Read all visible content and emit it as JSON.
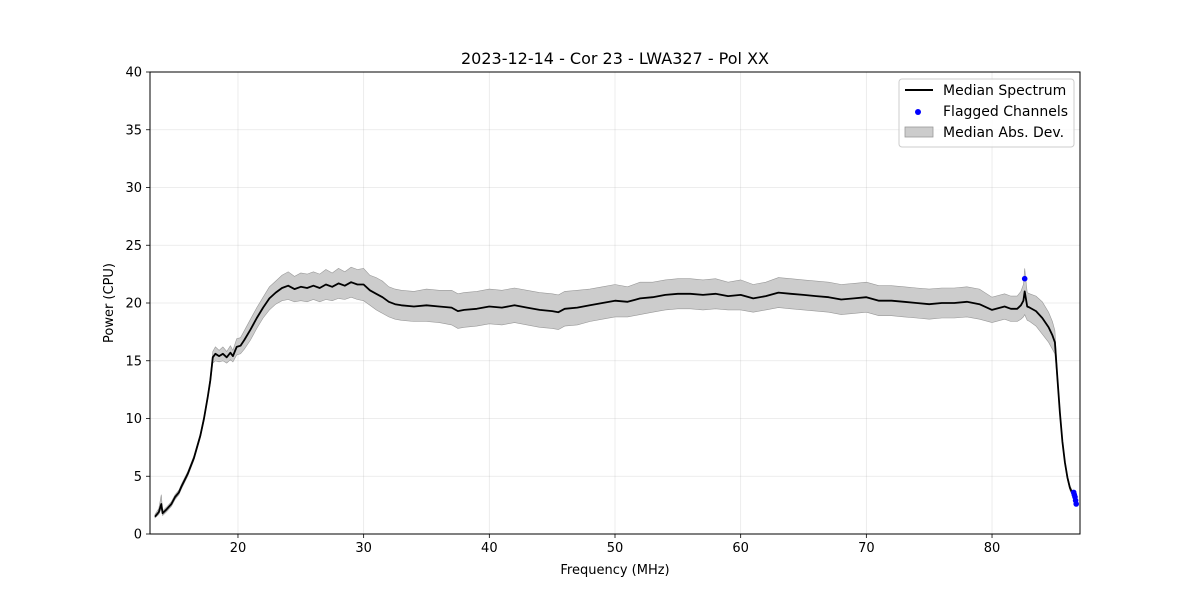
{
  "chart_data": {
    "type": "line",
    "title": "2023-12-14 - Cor 23 - LWA327 - Pol XX",
    "xlabel": "Frequency (MHz)",
    "ylabel": "Power (CPU)",
    "xlim": [
      13,
      87
    ],
    "ylim": [
      0,
      40
    ],
    "xticks": [
      20,
      30,
      40,
      50,
      60,
      70,
      80
    ],
    "yticks": [
      0,
      5,
      10,
      15,
      20,
      25,
      30,
      35,
      40
    ],
    "grid": true,
    "legend_position": "top-right",
    "colors": {
      "median": "#000000",
      "flagged": "#0000ff",
      "mad": "#cccccc",
      "mad_edge": "#999999"
    },
    "series": [
      {
        "name": "Median Spectrum",
        "kind": "line",
        "x": [
          13.4,
          13.7,
          13.9,
          14.0,
          14.3,
          14.7,
          15.0,
          15.3,
          15.5,
          16.0,
          16.5,
          17.0,
          17.3,
          17.6,
          17.8,
          18.0,
          18.2,
          18.5,
          18.8,
          19.1,
          19.4,
          19.6,
          19.9,
          20.2,
          20.5,
          21.0,
          21.5,
          22.0,
          22.5,
          23.0,
          23.5,
          24.0,
          24.5,
          25.0,
          25.5,
          26.0,
          26.5,
          27.0,
          27.5,
          28.0,
          28.5,
          29.0,
          29.5,
          30.0,
          30.5,
          31.0,
          31.5,
          32.0,
          32.5,
          33.0,
          34.0,
          35.0,
          36.0,
          37.0,
          37.5,
          38.0,
          39.0,
          40.0,
          41.0,
          42.0,
          43.0,
          44.0,
          45.0,
          45.5,
          46.0,
          47.0,
          48.0,
          49.0,
          50.0,
          51.0,
          52.0,
          53.0,
          54.0,
          55.0,
          56.0,
          57.0,
          58.0,
          59.0,
          60.0,
          61.0,
          62.0,
          63.0,
          64.0,
          65.0,
          66.0,
          67.0,
          68.0,
          69.0,
          70.0,
          71.0,
          72.0,
          73.0,
          74.0,
          75.0,
          76.0,
          77.0,
          78.0,
          79.0,
          80.0,
          81.0,
          81.5,
          82.0,
          82.3,
          82.5,
          82.6,
          82.8,
          83.0,
          83.5,
          84.0,
          84.5,
          84.8,
          85.0,
          85.2,
          85.4,
          85.6,
          85.8,
          86.0,
          86.2,
          86.4,
          86.5,
          86.6,
          86.7
        ],
        "y": [
          1.5,
          1.9,
          2.6,
          1.8,
          2.1,
          2.6,
          3.2,
          3.6,
          4.1,
          5.2,
          6.6,
          8.5,
          10.0,
          11.9,
          13.3,
          15.3,
          15.6,
          15.4,
          15.6,
          15.3,
          15.7,
          15.4,
          16.2,
          16.3,
          16.8,
          17.7,
          18.7,
          19.6,
          20.4,
          20.9,
          21.3,
          21.5,
          21.2,
          21.4,
          21.3,
          21.5,
          21.3,
          21.6,
          21.4,
          21.7,
          21.5,
          21.8,
          21.6,
          21.6,
          21.1,
          20.8,
          20.5,
          20.1,
          19.9,
          19.8,
          19.7,
          19.8,
          19.7,
          19.6,
          19.3,
          19.4,
          19.5,
          19.7,
          19.6,
          19.8,
          19.6,
          19.4,
          19.3,
          19.2,
          19.5,
          19.6,
          19.8,
          20.0,
          20.2,
          20.1,
          20.4,
          20.5,
          20.7,
          20.8,
          20.8,
          20.7,
          20.8,
          20.6,
          20.7,
          20.4,
          20.6,
          20.9,
          20.8,
          20.7,
          20.6,
          20.5,
          20.3,
          20.4,
          20.5,
          20.2,
          20.2,
          20.1,
          20.0,
          19.9,
          20.0,
          20.0,
          20.1,
          19.9,
          19.4,
          19.7,
          19.5,
          19.5,
          19.8,
          20.2,
          21.0,
          19.7,
          19.6,
          19.3,
          18.7,
          17.9,
          17.2,
          16.6,
          13.5,
          10.5,
          8.0,
          6.2,
          4.9,
          4.0,
          3.5,
          3.3,
          3.0,
          2.7
        ],
        "mad_lower": [
          1.4,
          1.7,
          2.2,
          1.6,
          1.9,
          2.4,
          3.0,
          3.4,
          3.9,
          5.0,
          6.4,
          8.3,
          9.8,
          11.7,
          13.0,
          14.8,
          15.0,
          14.9,
          15.0,
          14.8,
          15.1,
          14.9,
          15.5,
          15.6,
          16.0,
          16.8,
          17.8,
          18.7,
          19.4,
          19.9,
          20.2,
          20.3,
          20.1,
          20.2,
          20.1,
          20.3,
          20.1,
          20.3,
          20.2,
          20.4,
          20.3,
          20.5,
          20.3,
          20.2,
          19.8,
          19.4,
          19.1,
          18.8,
          18.6,
          18.5,
          18.4,
          18.4,
          18.3,
          18.1,
          17.8,
          17.9,
          18.0,
          18.2,
          18.1,
          18.3,
          18.1,
          17.9,
          17.8,
          17.7,
          18.0,
          18.1,
          18.4,
          18.6,
          18.8,
          18.8,
          19.0,
          19.2,
          19.4,
          19.5,
          19.5,
          19.4,
          19.5,
          19.4,
          19.4,
          19.2,
          19.4,
          19.6,
          19.5,
          19.4,
          19.3,
          19.2,
          19.0,
          19.1,
          19.2,
          18.9,
          18.9,
          18.8,
          18.7,
          18.6,
          18.7,
          18.7,
          18.8,
          18.6,
          18.3,
          18.6,
          18.4,
          18.4,
          18.6,
          18.8,
          19.0,
          18.5,
          18.4,
          18.0,
          17.3,
          16.6,
          16.0,
          15.6,
          13.1,
          10.2,
          7.8,
          6.0,
          4.7,
          3.8,
          3.3,
          3.1,
          2.8,
          2.5
        ],
        "mad_upper": [
          1.7,
          2.2,
          3.4,
          2.0,
          2.3,
          2.8,
          3.4,
          3.8,
          4.3,
          5.4,
          6.8,
          8.7,
          10.2,
          12.1,
          13.6,
          15.8,
          16.2,
          15.9,
          16.2,
          15.8,
          16.3,
          15.9,
          16.9,
          17.0,
          17.6,
          18.6,
          19.6,
          20.5,
          21.4,
          21.9,
          22.4,
          22.7,
          22.3,
          22.6,
          22.5,
          22.7,
          22.5,
          22.9,
          22.6,
          23.0,
          22.7,
          23.1,
          22.9,
          23.0,
          22.4,
          22.2,
          21.9,
          21.4,
          21.2,
          21.1,
          21.0,
          21.2,
          21.1,
          21.1,
          20.8,
          20.9,
          21.0,
          21.2,
          21.1,
          21.3,
          21.1,
          20.9,
          20.8,
          20.7,
          21.0,
          21.1,
          21.2,
          21.4,
          21.6,
          21.4,
          21.8,
          21.8,
          22.0,
          22.1,
          22.1,
          22.0,
          22.1,
          21.8,
          22.0,
          21.6,
          21.8,
          22.2,
          22.1,
          22.0,
          21.9,
          21.8,
          21.6,
          21.7,
          21.8,
          21.5,
          21.5,
          21.4,
          21.3,
          21.2,
          21.3,
          21.3,
          21.4,
          21.2,
          20.5,
          20.8,
          20.6,
          20.6,
          21.0,
          21.6,
          23.0,
          20.9,
          20.8,
          20.6,
          20.1,
          19.2,
          18.4,
          17.6,
          13.9,
          10.8,
          8.2,
          6.4,
          5.1,
          4.2,
          3.7,
          3.5,
          3.2,
          2.9
        ]
      },
      {
        "name": "Flagged Channels",
        "kind": "scatter",
        "x": [
          82.6,
          86.5,
          86.55,
          86.6,
          86.65,
          86.7
        ],
        "y": [
          22.1,
          3.6,
          3.4,
          3.2,
          2.9,
          2.6
        ]
      },
      {
        "name": "Median Abs. Dev.",
        "kind": "band"
      }
    ]
  }
}
